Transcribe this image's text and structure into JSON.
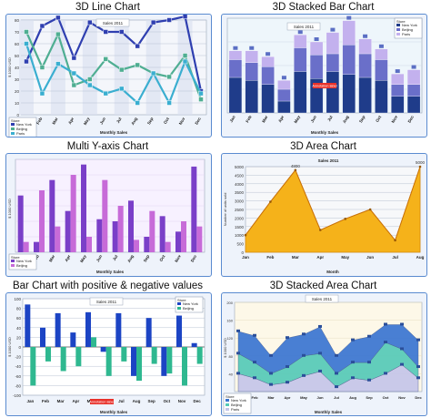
{
  "chart_data": [
    {
      "type": "line",
      "title": "3D Line Chart",
      "subtitle": "Sales 2011",
      "xlabel": "Monthly Sales",
      "ylabel": "$ 1000 USD",
      "categories": [
        "Jan",
        "Feb",
        "Mar",
        "Apr",
        "May",
        "Jun",
        "Jul",
        "Aug",
        "Sep",
        "Oct",
        "Nov",
        "Dec"
      ],
      "ylim": [
        0,
        80
      ],
      "yticks": [
        0,
        10,
        20,
        30,
        40,
        50,
        60,
        70,
        80
      ],
      "legend_title": "Store",
      "legend_position": "bottom-left",
      "series": [
        {
          "name": "New York",
          "color": "#2f3fb0",
          "values": [
            45,
            75,
            82,
            48,
            78,
            70,
            70,
            58,
            78,
            80,
            83,
            20
          ]
        },
        {
          "name": "Beijing",
          "color": "#4fae92",
          "values": [
            70,
            40,
            68,
            25,
            30,
            47,
            38,
            42,
            35,
            32,
            50,
            13
          ]
        },
        {
          "name": "Paris",
          "color": "#3aaed0",
          "values": [
            60,
            18,
            43,
            35,
            25,
            18,
            22,
            10,
            35,
            10,
            45,
            18
          ]
        }
      ]
    },
    {
      "type": "bar",
      "stacked": true,
      "title": "3D Stacked Bar Chart",
      "subtitle": "Sales 2011",
      "xlabel": "Monthly Sales",
      "categories": [
        "Jan",
        "Feb",
        "Mar",
        "Apr",
        "May",
        "Jun",
        "Jul",
        "Aug",
        "Sep",
        "Oct",
        "Nov",
        "Dec"
      ],
      "ylim": [
        0,
        160
      ],
      "legend_title": "Store",
      "legend_position": "top-right",
      "annotation": "Annotation label",
      "series": [
        {
          "name": "New York",
          "color": "#1f3c8a",
          "values": [
            60,
            55,
            48,
            20,
            70,
            58,
            70,
            65,
            60,
            55,
            28,
            28
          ]
        },
        {
          "name": "Beijing",
          "color": "#6a6fc9",
          "values": [
            30,
            30,
            30,
            20,
            40,
            40,
            30,
            50,
            40,
            35,
            20,
            20
          ]
        },
        {
          "name": "Paris",
          "color": "#c3b1ee",
          "values": [
            15,
            20,
            17,
            15,
            22,
            22,
            36,
            41,
            25,
            18,
            18,
            25
          ]
        }
      ]
    },
    {
      "type": "bar",
      "title": "Multi Y-axis Chart",
      "xlabel": "Monthly Sales",
      "ylabel": "$ 1000 USD",
      "categories": [
        "Jan",
        "Feb",
        "Mar",
        "Apr",
        "May",
        "Jun",
        "Jul",
        "Aug",
        "Sep",
        "Oct",
        "Nov",
        "Dec"
      ],
      "ylim": [
        0,
        90
      ],
      "legend_title": "Store",
      "legend_position": "bottom-left",
      "series": [
        {
          "name": "New York",
          "color": "#7a3fc8",
          "values": [
            55,
            10,
            70,
            40,
            85,
            32,
            30,
            50,
            15,
            35,
            20,
            83
          ]
        },
        {
          "name": "Beijing",
          "color": "#c76bd8",
          "values": [
            10,
            60,
            25,
            75,
            15,
            70,
            45,
            12,
            40,
            10,
            30,
            25
          ]
        }
      ]
    },
    {
      "type": "area",
      "title": "3D Area Chart",
      "subtitle": "Sales 2011",
      "xlabel": "Month",
      "ylabel": "Number of units sold",
      "categories": [
        "Jan",
        "Feb",
        "Mar",
        "Apr",
        "May",
        "Jun",
        "Jul",
        "Aug"
      ],
      "ylim": [
        0,
        5000
      ],
      "yticks": [
        0,
        500,
        1000,
        1500,
        2000,
        2500,
        3000,
        3500,
        4000,
        4500,
        5000
      ],
      "series": [
        {
          "name": "",
          "color": "#f5b21a",
          "values": [
            1000,
            2950,
            4800,
            1300,
            1950,
            2500,
            700,
            5000
          ]
        }
      ],
      "data_labels": [
        "",
        "",
        "4800",
        "",
        "",
        "",
        "",
        "5000"
      ]
    },
    {
      "type": "bar",
      "title": "Bar Chart with positive & negative values",
      "subtitle": "Sales 2011",
      "xlabel": "Monthly Sales",
      "ylabel": "$ 1000 USD",
      "categories": [
        "Jan",
        "Feb",
        "Mar",
        "Apr",
        "May",
        "Jun",
        "Jul",
        "Aug",
        "Sep",
        "Oct",
        "Nov",
        "Dec"
      ],
      "ylim": [
        -100,
        100
      ],
      "yticks": [
        -100,
        -80,
        -60,
        -40,
        -20,
        0,
        20,
        40,
        60,
        80,
        100
      ],
      "legend_title": "Store",
      "legend_position": "top-right",
      "annotation": "Annotation label",
      "series": [
        {
          "name": "New York",
          "color": "#1c44c4",
          "values": [
            88,
            40,
            70,
            30,
            72,
            -10,
            70,
            -60,
            60,
            -60,
            65,
            8
          ]
        },
        {
          "name": "Beijing",
          "color": "#2fb890",
          "values": [
            -80,
            -30,
            -50,
            -40,
            20,
            -60,
            -30,
            -70,
            -35,
            -55,
            -80,
            -35
          ]
        }
      ]
    },
    {
      "type": "area",
      "stacked": true,
      "title": "3D Stacked Area Chart",
      "subtitle": "Sales 2011",
      "xlabel": "Monthly Sales",
      "ylabel": "$ 1000 USD",
      "categories": [
        "Jan",
        "Feb",
        "Mar",
        "Apr",
        "May",
        "Jun",
        "Jul",
        "Aug",
        "Sep",
        "Oct",
        "Nov",
        "Dec"
      ],
      "ylim": [
        0,
        200
      ],
      "legend_title": "Store",
      "legend_position": "bottom-left",
      "series": [
        {
          "name": "Paris",
          "color": "#c4c4e8",
          "values": [
            40,
            30,
            15,
            20,
            35,
            45,
            10,
            30,
            25,
            40,
            60,
            30
          ]
        },
        {
          "name": "Beijing",
          "color": "#55c9b6",
          "values": [
            45,
            35,
            25,
            35,
            45,
            40,
            30,
            35,
            40,
            70,
            35,
            25
          ]
        },
        {
          "name": "New York",
          "color": "#3a74d0",
          "values": [
            50,
            60,
            40,
            65,
            48,
            60,
            40,
            50,
            58,
            40,
            55,
            60
          ]
        }
      ]
    }
  ]
}
